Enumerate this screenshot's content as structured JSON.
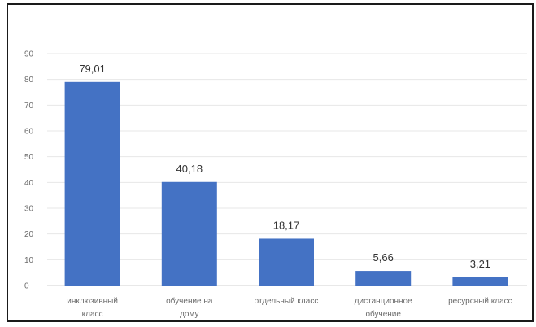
{
  "chart_data": {
    "type": "bar",
    "categories": [
      [
        "инклюзивный",
        "класс"
      ],
      [
        "обучение на",
        "дому"
      ],
      [
        "отдельный класс"
      ],
      [
        "дистанционное",
        "обучение"
      ],
      [
        "ресурсный класс"
      ]
    ],
    "values": [
      79.01,
      40.18,
      18.17,
      5.66,
      3.21
    ],
    "data_labels": [
      "79,01",
      "40,18",
      "18,17",
      "5,66",
      "3,21"
    ],
    "y_ticks": [
      "0",
      "10",
      "20",
      "30",
      "40",
      "50",
      "60",
      "70",
      "80",
      "90"
    ],
    "ylim": [
      0,
      90
    ],
    "grid": true,
    "legend": "none",
    "colors": {
      "bar": "#4472C4",
      "grid": "#e7e7e7",
      "axis": "#d0d0d0",
      "frame": "#1a1a1a"
    }
  }
}
